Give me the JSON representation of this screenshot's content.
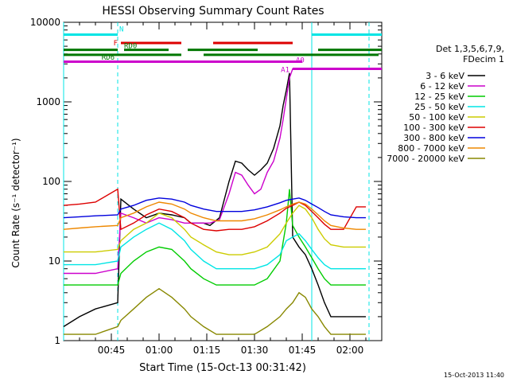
{
  "chart_data": {
    "type": "line",
    "title": "HESSI Observing Summary Count Rates",
    "xlabel": "Start Time (15-Oct-13 00:31:42)",
    "ylabel": "Count Rate (s⁻¹ detector⁻¹)",
    "y_scale": "log",
    "ylim": [
      1,
      10000
    ],
    "xlim_minutes": [
      0,
      100
    ],
    "x_ticks": [
      {
        "m": 15,
        "label": "00:45"
      },
      {
        "m": 30,
        "label": "01:00"
      },
      {
        "m": 45,
        "label": "01:15"
      },
      {
        "m": 60,
        "label": "01:30"
      },
      {
        "m": 75,
        "label": "01:45"
      },
      {
        "m": 90,
        "label": "02:00"
      }
    ],
    "y_ticks": [
      {
        "v": 1,
        "label": "1"
      },
      {
        "v": 10,
        "label": "10"
      },
      {
        "v": 100,
        "label": "100"
      },
      {
        "v": 1000,
        "label": "1000"
      },
      {
        "v": 10000,
        "label": "10000"
      }
    ],
    "legend_title": [
      "Det 1,3,5,6,7,9,",
      "FDecim 1"
    ],
    "legend_position": "right",
    "grid": false,
    "series": [
      {
        "name": "3 - 6 keV",
        "color": "#000000",
        "points": [
          [
            0,
            1.5
          ],
          [
            5,
            2
          ],
          [
            10,
            2.5
          ],
          [
            17,
            3
          ],
          [
            18,
            60
          ],
          [
            22,
            45
          ],
          [
            26,
            35
          ],
          [
            30,
            40
          ],
          [
            34,
            38
          ],
          [
            38,
            35
          ],
          [
            40,
            30
          ],
          [
            44,
            30
          ],
          [
            46,
            28
          ],
          [
            49,
            35
          ],
          [
            52,
            100
          ],
          [
            54,
            180
          ],
          [
            56,
            170
          ],
          [
            58,
            140
          ],
          [
            60,
            120
          ],
          [
            62,
            140
          ],
          [
            64,
            170
          ],
          [
            66,
            260
          ],
          [
            68,
            500
          ],
          [
            69,
            900
          ],
          [
            70,
            1400
          ],
          [
            71,
            2300
          ],
          [
            72,
            20
          ],
          [
            74,
            15
          ],
          [
            76,
            12
          ],
          [
            78,
            8
          ],
          [
            80,
            5
          ],
          [
            82,
            3
          ],
          [
            84,
            2
          ],
          [
            88,
            2
          ],
          [
            92,
            2
          ],
          [
            95,
            2
          ]
        ]
      },
      {
        "name": "6 - 12 keV",
        "color": "#cc00cc",
        "points": [
          [
            0,
            7
          ],
          [
            5,
            7
          ],
          [
            10,
            7
          ],
          [
            17,
            8
          ],
          [
            18,
            40
          ],
          [
            22,
            35
          ],
          [
            26,
            30
          ],
          [
            30,
            35
          ],
          [
            34,
            33
          ],
          [
            38,
            30
          ],
          [
            40,
            30
          ],
          [
            44,
            30
          ],
          [
            46,
            30
          ],
          [
            49,
            33
          ],
          [
            52,
            70
          ],
          [
            54,
            130
          ],
          [
            56,
            120
          ],
          [
            58,
            90
          ],
          [
            60,
            70
          ],
          [
            62,
            80
          ],
          [
            64,
            130
          ],
          [
            66,
            180
          ],
          [
            68,
            350
          ],
          [
            69,
            600
          ],
          [
            70,
            1100
          ],
          [
            71,
            2000
          ],
          [
            72,
            2600
          ],
          [
            80,
            2600
          ],
          [
            90,
            2600
          ],
          [
            95,
            2600
          ]
        ]
      },
      {
        "name": "12 - 25 keV",
        "color": "#00cc00",
        "points": [
          [
            0,
            5
          ],
          [
            5,
            5
          ],
          [
            10,
            5
          ],
          [
            17,
            5
          ],
          [
            18,
            7
          ],
          [
            22,
            10
          ],
          [
            26,
            13
          ],
          [
            30,
            15
          ],
          [
            34,
            14
          ],
          [
            38,
            10
          ],
          [
            40,
            8
          ],
          [
            44,
            6
          ],
          [
            48,
            5
          ],
          [
            52,
            5
          ],
          [
            56,
            5
          ],
          [
            60,
            5
          ],
          [
            64,
            6
          ],
          [
            68,
            10
          ],
          [
            70,
            30
          ],
          [
            71,
            80
          ],
          [
            72,
            28
          ],
          [
            74,
            20
          ],
          [
            76,
            15
          ],
          [
            78,
            11
          ],
          [
            80,
            8
          ],
          [
            82,
            6
          ],
          [
            84,
            5
          ],
          [
            88,
            5
          ],
          [
            92,
            5
          ],
          [
            95,
            5
          ]
        ]
      },
      {
        "name": "25 - 50 keV",
        "color": "#00e5e5",
        "points": [
          [
            0,
            9
          ],
          [
            5,
            9
          ],
          [
            10,
            9
          ],
          [
            17,
            10
          ],
          [
            18,
            15
          ],
          [
            22,
            20
          ],
          [
            26,
            25
          ],
          [
            30,
            30
          ],
          [
            34,
            25
          ],
          [
            38,
            18
          ],
          [
            40,
            14
          ],
          [
            44,
            10
          ],
          [
            48,
            8
          ],
          [
            52,
            8
          ],
          [
            56,
            8
          ],
          [
            60,
            8
          ],
          [
            64,
            9
          ],
          [
            68,
            12
          ],
          [
            70,
            18
          ],
          [
            72,
            20
          ],
          [
            74,
            22
          ],
          [
            76,
            18
          ],
          [
            78,
            14
          ],
          [
            80,
            11
          ],
          [
            82,
            9
          ],
          [
            84,
            8
          ],
          [
            88,
            8
          ],
          [
            92,
            8
          ],
          [
            95,
            8
          ]
        ]
      },
      {
        "name": "50 - 100 keV",
        "color": "#cccc00",
        "points": [
          [
            0,
            13
          ],
          [
            5,
            13
          ],
          [
            10,
            13
          ],
          [
            17,
            14
          ],
          [
            18,
            18
          ],
          [
            22,
            25
          ],
          [
            26,
            30
          ],
          [
            30,
            40
          ],
          [
            34,
            35
          ],
          [
            38,
            25
          ],
          [
            40,
            20
          ],
          [
            44,
            16
          ],
          [
            48,
            13
          ],
          [
            52,
            12
          ],
          [
            56,
            12
          ],
          [
            60,
            13
          ],
          [
            64,
            15
          ],
          [
            68,
            22
          ],
          [
            70,
            30
          ],
          [
            72,
            40
          ],
          [
            74,
            50
          ],
          [
            76,
            45
          ],
          [
            78,
            35
          ],
          [
            80,
            25
          ],
          [
            82,
            19
          ],
          [
            84,
            16
          ],
          [
            88,
            15
          ],
          [
            92,
            15
          ],
          [
            95,
            15
          ]
        ]
      },
      {
        "name": "100 - 300 keV",
        "color": "#dd0000",
        "points": [
          [
            0,
            50
          ],
          [
            5,
            52
          ],
          [
            10,
            55
          ],
          [
            17,
            80
          ],
          [
            18,
            25
          ],
          [
            22,
            30
          ],
          [
            26,
            38
          ],
          [
            30,
            45
          ],
          [
            34,
            42
          ],
          [
            38,
            35
          ],
          [
            40,
            30
          ],
          [
            44,
            25
          ],
          [
            48,
            24
          ],
          [
            52,
            25
          ],
          [
            56,
            25
          ],
          [
            60,
            27
          ],
          [
            64,
            32
          ],
          [
            68,
            40
          ],
          [
            70,
            46
          ],
          [
            72,
            50
          ],
          [
            74,
            55
          ],
          [
            76,
            50
          ],
          [
            78,
            42
          ],
          [
            80,
            35
          ],
          [
            82,
            29
          ],
          [
            84,
            25
          ],
          [
            88,
            25
          ],
          [
            92,
            48
          ],
          [
            95,
            48
          ]
        ]
      },
      {
        "name": "300 - 800 keV",
        "color": "#0000dd",
        "points": [
          [
            0,
            35
          ],
          [
            5,
            36
          ],
          [
            10,
            37
          ],
          [
            17,
            38
          ],
          [
            18,
            45
          ],
          [
            22,
            50
          ],
          [
            26,
            58
          ],
          [
            30,
            62
          ],
          [
            34,
            60
          ],
          [
            38,
            55
          ],
          [
            40,
            50
          ],
          [
            44,
            45
          ],
          [
            48,
            42
          ],
          [
            52,
            42
          ],
          [
            56,
            42
          ],
          [
            60,
            44
          ],
          [
            64,
            48
          ],
          [
            68,
            54
          ],
          [
            70,
            58
          ],
          [
            72,
            60
          ],
          [
            74,
            62
          ],
          [
            76,
            58
          ],
          [
            78,
            52
          ],
          [
            80,
            47
          ],
          [
            82,
            42
          ],
          [
            84,
            38
          ],
          [
            88,
            36
          ],
          [
            92,
            35
          ],
          [
            95,
            35
          ]
        ]
      },
      {
        "name": "800 - 7000 keV",
        "color": "#ee8800",
        "points": [
          [
            0,
            25
          ],
          [
            5,
            26
          ],
          [
            10,
            27
          ],
          [
            17,
            28
          ],
          [
            18,
            35
          ],
          [
            22,
            40
          ],
          [
            26,
            48
          ],
          [
            30,
            55
          ],
          [
            34,
            52
          ],
          [
            38,
            45
          ],
          [
            40,
            40
          ],
          [
            44,
            35
          ],
          [
            48,
            32
          ],
          [
            52,
            32
          ],
          [
            56,
            32
          ],
          [
            60,
            34
          ],
          [
            64,
            38
          ],
          [
            68,
            44
          ],
          [
            70,
            48
          ],
          [
            72,
            52
          ],
          [
            74,
            55
          ],
          [
            76,
            52
          ],
          [
            78,
            45
          ],
          [
            80,
            38
          ],
          [
            82,
            32
          ],
          [
            84,
            28
          ],
          [
            88,
            26
          ],
          [
            92,
            25
          ],
          [
            95,
            25
          ]
        ]
      },
      {
        "name": "7000 - 20000 keV",
        "color": "#888800",
        "points": [
          [
            0,
            1.2
          ],
          [
            5,
            1.2
          ],
          [
            10,
            1.2
          ],
          [
            17,
            1.5
          ],
          [
            18,
            1.8
          ],
          [
            22,
            2.5
          ],
          [
            26,
            3.5
          ],
          [
            30,
            4.5
          ],
          [
            34,
            3.5
          ],
          [
            38,
            2.5
          ],
          [
            40,
            2
          ],
          [
            44,
            1.5
          ],
          [
            48,
            1.2
          ],
          [
            52,
            1.2
          ],
          [
            56,
            1.2
          ],
          [
            60,
            1.2
          ],
          [
            64,
            1.5
          ],
          [
            68,
            2
          ],
          [
            70,
            2.5
          ],
          [
            72,
            3
          ],
          [
            74,
            4
          ],
          [
            76,
            3.5
          ],
          [
            78,
            2.5
          ],
          [
            80,
            2
          ],
          [
            82,
            1.5
          ],
          [
            84,
            1.2
          ],
          [
            88,
            1.2
          ],
          [
            92,
            1.2
          ],
          [
            95,
            1.2
          ]
        ]
      }
    ],
    "flag_bars": [
      {
        "label": "N",
        "color": "#00e5e5",
        "y": 7000,
        "segments": [
          [
            0,
            17
          ],
          [
            78,
            100
          ]
        ]
      },
      {
        "label": "F",
        "color": "#dd0000",
        "y": 5500,
        "segments": [
          [
            18,
            37
          ],
          [
            47,
            72
          ]
        ]
      },
      {
        "label": "RD0",
        "color": "#007700",
        "y": 4500,
        "segments": [
          [
            0,
            17
          ],
          [
            19,
            33
          ],
          [
            39,
            61
          ],
          [
            80,
            100
          ]
        ]
      },
      {
        "label": "RD6",
        "color": "#007700",
        "y": 3900,
        "segments": [
          [
            0,
            37
          ],
          [
            44,
            99
          ]
        ]
      },
      {
        "label": "A0",
        "color": "#cc00cc",
        "y": 3200,
        "segments": [
          [
            0,
            75
          ]
        ]
      },
      {
        "label": "A1",
        "color": "#cc00cc",
        "y": 2600,
        "segments": [
          [
            72,
            100
          ]
        ]
      }
    ],
    "v_lines": [
      {
        "m": 0,
        "color": "#00e5e5",
        "style": "solid"
      },
      {
        "m": 17,
        "color": "#00e5e5",
        "style": "dashed"
      },
      {
        "m": 78,
        "color": "#00e5e5",
        "style": "solid"
      },
      {
        "m": 96,
        "color": "#00e5e5",
        "style": "dashed"
      }
    ],
    "timestamp": "15-Oct-2013 11:40"
  }
}
